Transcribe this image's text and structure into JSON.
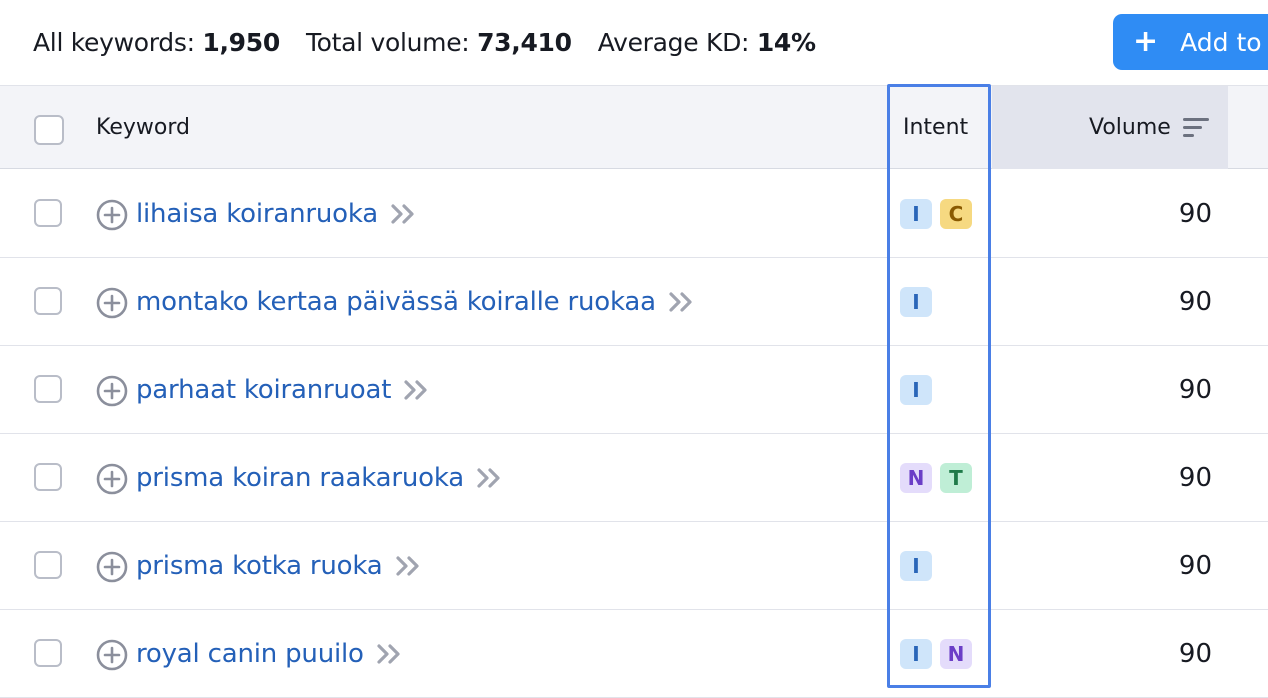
{
  "summary": {
    "all_keywords_label": "All keywords:",
    "all_keywords_value": "1,950",
    "total_volume_label": "Total volume:",
    "total_volume_value": "73,410",
    "avg_kd_label": "Average KD:",
    "avg_kd_value": "14%",
    "add_button_label": "Add to"
  },
  "table": {
    "headers": {
      "keyword": "Keyword",
      "intent": "Intent",
      "volume": "Volume"
    },
    "rows": [
      {
        "keyword": "lihaisa koiranruoka",
        "intents": [
          "I",
          "C"
        ],
        "volume": "90"
      },
      {
        "keyword": "montako kertaa päivässä koiralle ruokaa",
        "intents": [
          "I"
        ],
        "volume": "90"
      },
      {
        "keyword": "parhaat koiranruoat",
        "intents": [
          "I"
        ],
        "volume": "90"
      },
      {
        "keyword": "prisma koiran raakaruoka",
        "intents": [
          "N",
          "T"
        ],
        "volume": "90"
      },
      {
        "keyword": "prisma kotka ruoka",
        "intents": [
          "I"
        ],
        "volume": "90"
      },
      {
        "keyword": "royal canin puuilo",
        "intents": [
          "I",
          "N"
        ],
        "volume": "90"
      }
    ]
  },
  "intent_colors": {
    "I": {
      "bg": "#cfe5fa",
      "fg": "#2a66b8"
    },
    "C": {
      "bg": "#f6d981",
      "fg": "#8a5a00"
    },
    "N": {
      "bg": "#e4dcfb",
      "fg": "#6b3ec7"
    },
    "T": {
      "bg": "#bfeed6",
      "fg": "#1f7a49"
    }
  },
  "colors": {
    "accent": "#2f8cf4",
    "link": "#2460b8",
    "highlight": "#4a7fe6"
  },
  "icons": {
    "add": "plus-icon",
    "expand": "plus-circle-icon",
    "open": "double-chevron-right-icon",
    "sort": "sort-icon"
  }
}
